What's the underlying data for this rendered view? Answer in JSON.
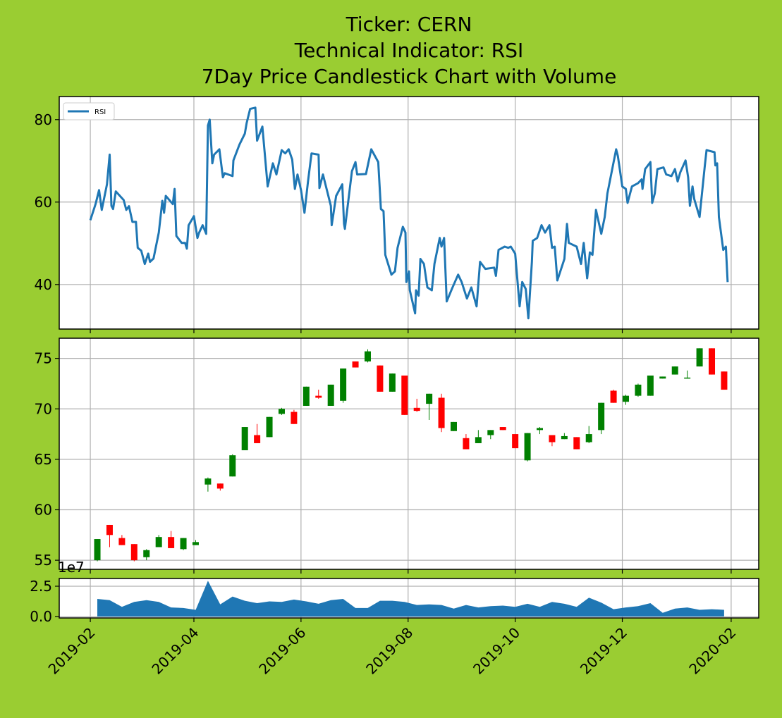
{
  "chart_data": [
    {
      "type": "line",
      "title": [
        "Ticker: CERN",
        "Technical Indicator: RSI",
        "7Day Price Candlestick Chart with Volume"
      ],
      "x": [
        0,
        3,
        5,
        6.5,
        9.5,
        11,
        12,
        13,
        14.5,
        19,
        20.5,
        22,
        24,
        26,
        27,
        29,
        31,
        33,
        34,
        36,
        39,
        41,
        42,
        43,
        47,
        48,
        49,
        52,
        54,
        55,
        56,
        59,
        61,
        62,
        64,
        66,
        67,
        68,
        69.5,
        70.5,
        73.5,
        75.5,
        76.5,
        81,
        81.5,
        85,
        88,
        89,
        91,
        94,
        95,
        98,
        101,
        104,
        106,
        109,
        111,
        113,
        115,
        116.5,
        118,
        120,
        122,
        124,
        126,
        130,
        130.5,
        132.5,
        137,
        137.5,
        140,
        143.5,
        144.5,
        145,
        149,
        151,
        152,
        157,
        160,
        164,
        165.5,
        167,
        168,
        171.5,
        173.5,
        175,
        178,
        179.5,
        180,
        181.5,
        182,
        185,
        185.5,
        187,
        188,
        190,
        192,
        194.5,
        196,
        199,
        200,
        201.5,
        203,
        206,
        209.5,
        211.5,
        214.5,
        217,
        220,
        222,
        225,
        230,
        231,
        232.5,
        236,
        238,
        239.5,
        242,
        244.5,
        246,
        248,
        249.5,
        251.5,
        252,
        254.5,
        257,
        259,
        261.5,
        263,
        264.5,
        266,
        270,
        271.5,
        272.5,
        277,
        279.5,
        281,
        283,
        284.5,
        286,
        288,
        291,
        293,
        294.5,
        299.5,
        300.5,
        303,
        305,
        306,
        308.5,
        312,
        314,
        314.5,
        316,
        319,
        320,
        321.5,
        323,
        326.5,
        328,
        331,
        333,
        334.5,
        336,
        339,
        340.5,
        341.5,
        343,
        344,
        347,
        350,
        351,
        355.5,
        356,
        357,
        358,
        360.5,
        362,
        363
      ],
      "series": [
        {
          "name": "RSI",
          "color": "#1f77b4",
          "values": [
            55.6,
            59.5,
            62.9,
            58.1,
            64.3,
            71.5,
            59.1,
            58.3,
            62.6,
            60.5,
            58.1,
            59,
            55.2,
            55.2,
            48.9,
            48.2,
            45,
            47.5,
            45.5,
            46.3,
            52.6,
            60.3,
            57.4,
            61.5,
            59.5,
            63.2,
            51.8,
            50.1,
            50.1,
            48.7,
            54.4,
            56.6,
            51.3,
            52.6,
            54.4,
            52.3,
            78.6,
            80,
            69.4,
            71.5,
            72.8,
            66,
            67,
            66.3,
            70.1,
            74,
            76.6,
            79.1,
            82.6,
            82.9,
            74.9,
            78.3,
            63.8,
            69.4,
            66.7,
            72.6,
            71.8,
            72.8,
            70.3,
            63.2,
            66.7,
            62.9,
            57.4,
            65,
            71.8,
            71.5,
            63.4,
            66.7,
            59.1,
            54.4,
            61.5,
            64.3,
            54.7,
            53.5,
            67.5,
            69.7,
            66.7,
            66.8,
            72.8,
            69.7,
            58.3,
            57.8,
            47.2,
            42.4,
            43.2,
            48.9,
            54,
            52.6,
            40.6,
            43.2,
            38.6,
            33,
            38.6,
            37.3,
            46.2,
            45,
            39.3,
            38.6,
            45,
            51.3,
            49.2,
            51.3,
            35.9,
            39,
            42.4,
            40.6,
            36.6,
            39.3,
            34.7,
            45.5,
            43.8,
            44.1,
            42.1,
            48.4,
            49.2,
            48.9,
            49.2,
            47.5,
            34.7,
            40.6,
            38.9,
            31.8,
            45.5,
            50.6,
            51.3,
            54.4,
            52.6,
            54.4,
            48.9,
            49.2,
            41,
            46.2,
            54.7,
            50.1,
            49.2,
            45,
            50.1,
            41.5,
            47.8,
            47.2,
            58.1,
            52.3,
            56.4,
            62.1,
            72.8,
            71.1,
            63.8,
            63.2,
            59.8,
            63.8,
            64.6,
            65.5,
            63.2,
            68,
            69.7,
            59.8,
            62.1,
            68,
            68.4,
            66.7,
            66.3,
            68,
            65,
            67.2,
            70.1,
            66,
            59.1,
            63.8,
            60.7,
            56.4,
            68.9,
            72.6,
            72.1,
            68.9,
            69.4,
            56.4,
            48.4,
            49.2,
            40.6
          ]
        }
      ],
      "xlim": [
        -17.7,
        380.7
      ],
      "xticks": [
        0,
        59,
        120,
        181,
        242,
        303,
        365
      ],
      "ylim": [
        29.2,
        85.6
      ],
      "yticks": [
        40,
        60,
        80
      ],
      "grid": true,
      "legend": "upper left"
    },
    {
      "type": "candlestick",
      "x": [
        4,
        11,
        18,
        25,
        32,
        39,
        46,
        53,
        60,
        67,
        74,
        81,
        88,
        95,
        102,
        109,
        116,
        123,
        130,
        137,
        144,
        151,
        158,
        165,
        172,
        179,
        186,
        193,
        200,
        207,
        214,
        221,
        228,
        235,
        242,
        249,
        256,
        263,
        270,
        277,
        284,
        291,
        298,
        305,
        312,
        319,
        326,
        333,
        340,
        347,
        354,
        361
      ],
      "open": [
        55,
        58.5,
        57.2,
        56.6,
        55.3,
        56.3,
        57.3,
        56.1,
        56.5,
        62.5,
        62.6,
        63.3,
        65.9,
        67.4,
        67.2,
        69.5,
        69.7,
        70.3,
        71.3,
        70.3,
        70.8,
        74.7,
        74.7,
        74.3,
        71.7,
        73.3,
        70.1,
        70.5,
        71.1,
        67.8,
        67.1,
        66.6,
        67.4,
        68.2,
        67.5,
        64.9,
        67.9,
        67.4,
        67.0,
        67.2,
        66.7,
        67.9,
        71.8,
        70.7,
        71.3,
        71.3,
        73.0,
        73.4,
        73.0,
        74.2,
        76.0,
        73.7
      ],
      "high": [
        57.1,
        58.5,
        57.5,
        56.6,
        56.1,
        57.5,
        57.9,
        57.2,
        57.0,
        63.2,
        62.6,
        65.5,
        68.2,
        68.5,
        69.2,
        70.1,
        69.9,
        72.2,
        71.9,
        72.4,
        74.0,
        74.7,
        75.9,
        74.3,
        73.5,
        73.3,
        71.0,
        71.5,
        71.5,
        68.7,
        67.5,
        67.9,
        67.9,
        68.2,
        67.5,
        67.6,
        68.2,
        67.4,
        67.6,
        67.2,
        68.3,
        70.6,
        71.9,
        71.4,
        72.5,
        73.3,
        73.2,
        74.2,
        73.8,
        76.0,
        76.0,
        73.7
      ],
      "low": [
        54.9,
        56.3,
        56.5,
        54.9,
        55.0,
        56.3,
        56.2,
        56.0,
        56.5,
        61.8,
        61.9,
        63.3,
        65.9,
        66.6,
        67.2,
        69.4,
        68.5,
        70.3,
        71.0,
        70.3,
        70.6,
        74.1,
        74.6,
        71.7,
        71.7,
        69.4,
        69.7,
        68.9,
        67.7,
        67.8,
        66.0,
        66.6,
        67.0,
        67.9,
        66.1,
        64.8,
        67.5,
        66.3,
        67.0,
        66.0,
        66.6,
        67.5,
        70.6,
        70.4,
        71.2,
        71.3,
        73.0,
        73.4,
        73.0,
        74.2,
        73.4,
        71.9
      ],
      "close": [
        57.1,
        57.5,
        56.5,
        55,
        56,
        57.3,
        56.2,
        57.2,
        56.8,
        63.1,
        62.1,
        65.4,
        68.2,
        66.6,
        69.2,
        70.0,
        68.5,
        72.2,
        71.1,
        72.4,
        74.0,
        74.1,
        75.7,
        71.7,
        73.5,
        69.4,
        69.8,
        71.5,
        68.1,
        68.7,
        66.0,
        67.2,
        67.9,
        67.9,
        66.1,
        67.6,
        68.1,
        66.7,
        67.3,
        66.0,
        67.5,
        70.6,
        70.6,
        71.3,
        72.4,
        73.3,
        73.2,
        74.2,
        73.1,
        76.0,
        73.4,
        71.9
      ],
      "up_color": "green",
      "down_color": "red",
      "xlim": [
        -17.7,
        380.7
      ],
      "xticks": [
        0,
        59,
        120,
        181,
        242,
        303,
        365
      ],
      "ylim": [
        54.1,
        77
      ],
      "yticks": [
        55,
        60,
        65,
        70,
        75
      ],
      "grid": true
    },
    {
      "type": "area",
      "offset_label": "1e7",
      "x": [
        4,
        11,
        18,
        25,
        32,
        39,
        46,
        53,
        60,
        67,
        74,
        81,
        88,
        95,
        102,
        109,
        116,
        123,
        130,
        137,
        144,
        151,
        158,
        165,
        172,
        179,
        186,
        193,
        200,
        207,
        214,
        221,
        228,
        235,
        242,
        249,
        256,
        263,
        270,
        277,
        284,
        291,
        298,
        305,
        312,
        319,
        326,
        333,
        340,
        347,
        354,
        361
      ],
      "values": [
        1.45,
        1.35,
        0.8,
        1.2,
        1.35,
        1.2,
        0.75,
        0.7,
        0.55,
        2.95,
        1.0,
        1.65,
        1.3,
        1.1,
        1.25,
        1.2,
        1.4,
        1.25,
        1.05,
        1.35,
        1.45,
        0.7,
        0.7,
        1.3,
        1.3,
        1.2,
        0.95,
        1.0,
        0.95,
        0.65,
        0.95,
        0.75,
        0.85,
        0.9,
        0.8,
        1.05,
        0.8,
        1.2,
        1.05,
        0.8,
        1.55,
        1.15,
        0.6,
        0.75,
        0.85,
        1.1,
        0.3,
        0.65,
        0.75,
        0.55,
        0.6,
        0.55
      ],
      "color": "#1f77b4",
      "xlim": [
        -17.7,
        380.7
      ],
      "xticks": [
        {
          "value": 0,
          "label": "2019-02"
        },
        {
          "value": 59,
          "label": "2019-04"
        },
        {
          "value": 120,
          "label": "2019-06"
        },
        {
          "value": 181,
          "label": "2019-08"
        },
        {
          "value": 242,
          "label": "2019-10"
        },
        {
          "value": 303,
          "label": "2019-12"
        },
        {
          "value": 365,
          "label": "2020-02"
        }
      ],
      "ylim": [
        -0.12,
        3.14
      ],
      "yticks": [
        {
          "value": 0,
          "label": "0.0"
        },
        2.5
      ],
      "grid": true
    }
  ]
}
